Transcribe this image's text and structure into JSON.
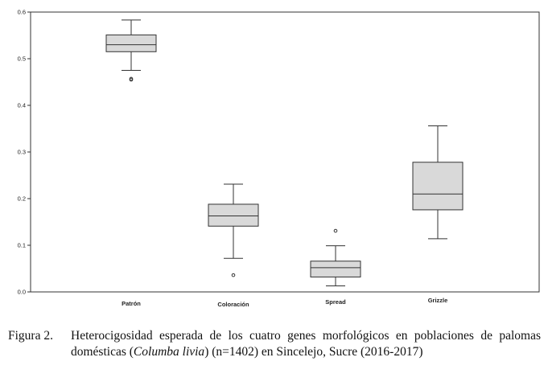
{
  "chart_data": {
    "type": "boxplot",
    "title": "",
    "xlabel": "",
    "ylabel": "",
    "ylim": [
      0.0,
      0.6
    ],
    "yticks": [
      "0.0",
      "0.1",
      "0.2",
      "0.3",
      "0.4",
      "0.5",
      "0.6"
    ],
    "categories": [
      "Patrón",
      "Coloración",
      "Spread",
      "Grizzle"
    ],
    "boxes": [
      {
        "category": "Patrón",
        "whisker_low": 0.475,
        "q1": 0.515,
        "median": 0.53,
        "q3": 0.551,
        "whisker_high": 0.583,
        "outliers": [
          0.455,
          0.457
        ]
      },
      {
        "category": "Coloración",
        "whisker_low": 0.072,
        "q1": 0.141,
        "median": 0.163,
        "q3": 0.188,
        "whisker_high": 0.231,
        "outliers": [
          0.036
        ]
      },
      {
        "category": "Spread",
        "whisker_low": 0.013,
        "q1": 0.032,
        "median": 0.052,
        "q3": 0.066,
        "whisker_high": 0.099,
        "outliers": [
          0.131
        ]
      },
      {
        "category": "Grizzle",
        "whisker_low": 0.114,
        "q1": 0.176,
        "median": 0.21,
        "q3": 0.278,
        "whisker_high": 0.356,
        "outliers": []
      }
    ],
    "grid": false,
    "box_fill": "#d9d9d9"
  },
  "caption": {
    "label": "Figura 2.",
    "text_before": "Heterocigosidad esperada de los cuatro genes morfológicos en poblaciones de palomas domésticas (",
    "italic": "Columba livia",
    "text_after": ") (n=1402) en Sincelejo, Sucre (2016-2017)"
  }
}
